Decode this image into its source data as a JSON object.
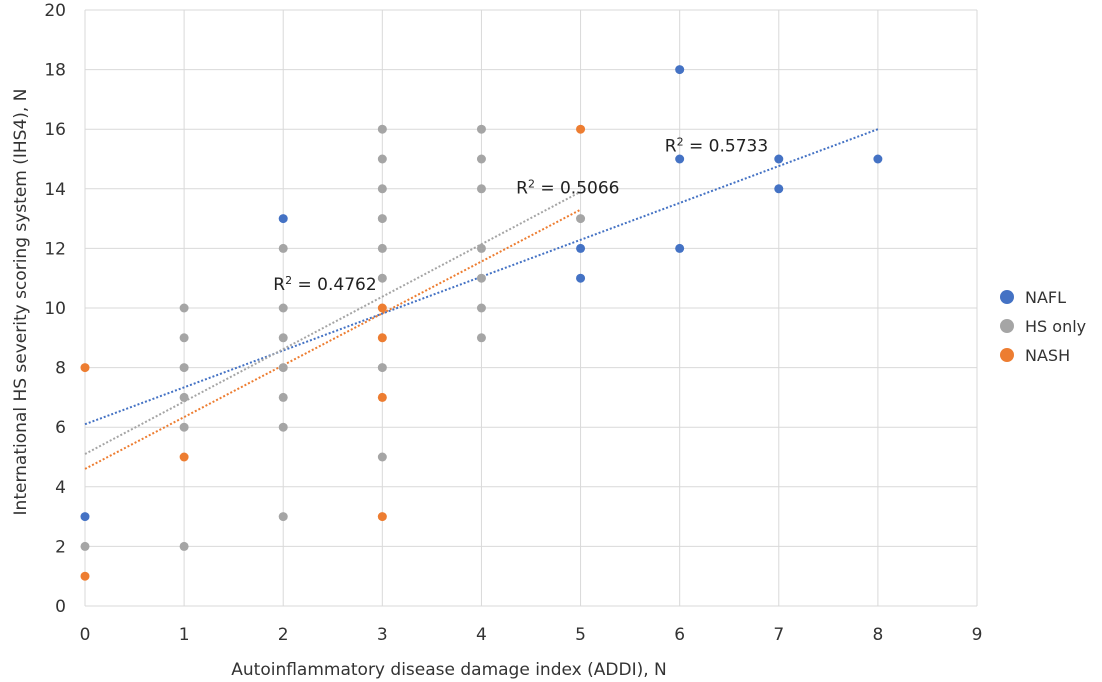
{
  "chart_data": {
    "type": "scatter",
    "xlabel": "Autoinflammatory disease damage index (ADDI), N",
    "ylabel": "International HS severity scoring system (IHS4), N",
    "xlim": [
      0,
      9
    ],
    "ylim": [
      0,
      20
    ],
    "x_ticks": [
      0,
      1,
      2,
      3,
      4,
      5,
      6,
      7,
      8,
      9
    ],
    "y_ticks": [
      0,
      2,
      4,
      6,
      8,
      10,
      12,
      14,
      16,
      18,
      20
    ],
    "grid": true,
    "legend_position": "right",
    "series": [
      {
        "name": "NAFL",
        "color": "#4472C4",
        "points": [
          [
            0,
            3
          ],
          [
            2,
            13
          ],
          [
            5,
            12
          ],
          [
            5,
            11
          ],
          [
            6,
            18
          ],
          [
            6,
            15
          ],
          [
            6,
            12
          ],
          [
            7,
            15
          ],
          [
            7,
            14
          ],
          [
            8,
            15
          ]
        ],
        "trendline": {
          "from": [
            0,
            6.1
          ],
          "to": [
            8,
            16
          ]
        },
        "r2_label": {
          "prefix": "R",
          "sup": "2",
          "value": " = 0.5733",
          "anchor": [
            5.85,
            15.25
          ]
        }
      },
      {
        "name": "HS only",
        "color": "#A5A5A5",
        "points": [
          [
            0,
            2
          ],
          [
            1,
            10
          ],
          [
            1,
            9
          ],
          [
            1,
            8
          ],
          [
            1,
            7
          ],
          [
            1,
            6
          ],
          [
            1,
            2
          ],
          [
            2,
            12
          ],
          [
            2,
            10
          ],
          [
            2,
            9
          ],
          [
            2,
            8
          ],
          [
            2,
            7
          ],
          [
            2,
            6
          ],
          [
            2,
            3
          ],
          [
            3,
            16
          ],
          [
            3,
            15
          ],
          [
            3,
            14
          ],
          [
            3,
            13
          ],
          [
            3,
            12
          ],
          [
            3,
            11
          ],
          [
            3,
            8
          ],
          [
            3,
            5
          ],
          [
            4,
            16
          ],
          [
            4,
            15
          ],
          [
            4,
            14
          ],
          [
            4,
            12
          ],
          [
            4,
            11
          ],
          [
            4,
            10
          ],
          [
            4,
            9
          ],
          [
            5,
            13
          ]
        ],
        "trendline": {
          "from": [
            0,
            5.1
          ],
          "to": [
            5,
            13.9
          ]
        },
        "r2_label": {
          "prefix": "R",
          "sup": "2",
          "value": " = 0.5066",
          "anchor": [
            4.35,
            13.85
          ]
        }
      },
      {
        "name": "NASH",
        "color": "#ED7D31",
        "points": [
          [
            0,
            8
          ],
          [
            0,
            1
          ],
          [
            1,
            5
          ],
          [
            3,
            10
          ],
          [
            3,
            9
          ],
          [
            3,
            7
          ],
          [
            3,
            3
          ],
          [
            5,
            16
          ]
        ],
        "trendline": {
          "from": [
            0,
            4.6
          ],
          "to": [
            5,
            13.3
          ]
        },
        "r2_label": {
          "prefix": "R",
          "sup": "2",
          "value": " = 0.4762",
          "anchor": [
            1.9,
            10.6
          ]
        }
      }
    ]
  }
}
